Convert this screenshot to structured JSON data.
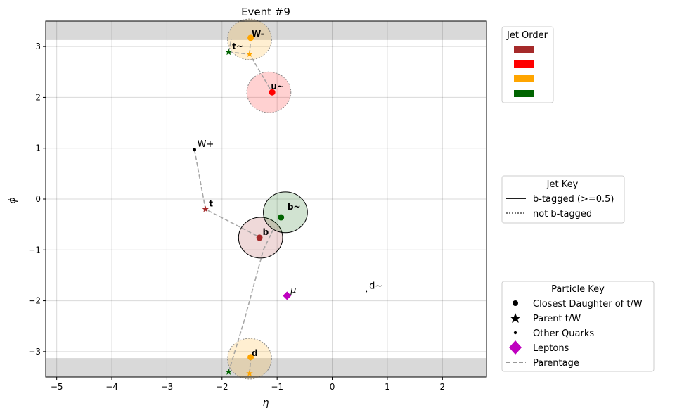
{
  "chart_data": {
    "type": "scatter",
    "title": "Event #9",
    "xlabel": "η",
    "ylabel": "ϕ",
    "xlim": [
      -5.2,
      2.8
    ],
    "ylim": [
      -3.5,
      3.5
    ],
    "xticks": [
      -5,
      -4,
      -3,
      -2,
      -1,
      0,
      1,
      2
    ],
    "yticks": [
      -3,
      -2,
      -1,
      0,
      1,
      2,
      3
    ],
    "xtick_labels": [
      "−5",
      "−4",
      "−3",
      "−2",
      "−1",
      "0",
      "1",
      "2"
    ],
    "ytick_labels": [
      "−3",
      "−2",
      "−1",
      "0",
      "1",
      "2",
      "3"
    ],
    "grid": true,
    "shaded_bands": [
      {
        "ymin": 3.14159,
        "ymax": 3.5
      },
      {
        "ymin": -3.5,
        "ymax": -3.14159
      }
    ],
    "jets": [
      {
        "eta": -1.3,
        "phi": -0.76,
        "radius": 0.4,
        "color": "#a52a2a",
        "btag": true,
        "label": "b"
      },
      {
        "eta": -0.85,
        "phi": -0.26,
        "radius": 0.4,
        "color": "#006400",
        "btag": true,
        "label": "b~"
      },
      {
        "eta": -1.15,
        "phi": 2.1,
        "radius": 0.4,
        "color": "#ff0000",
        "btag": false,
        "label": "u~"
      },
      {
        "eta": -1.5,
        "phi": 3.14,
        "radius": 0.4,
        "color": "#ffa500",
        "btag": false,
        "label": "W-"
      },
      {
        "eta": -1.5,
        "phi": -3.14,
        "radius": 0.4,
        "color": "#ffa500",
        "btag": false,
        "label": "d"
      }
    ],
    "daughters": [
      {
        "eta": -1.32,
        "phi": -0.76,
        "color": "#a52a2a"
      },
      {
        "eta": -0.93,
        "phi": -0.36,
        "color": "#006400"
      },
      {
        "eta": -1.09,
        "phi": 2.1,
        "color": "#ff0000"
      },
      {
        "eta": -1.48,
        "phi": 3.17,
        "color": "#ffa500"
      },
      {
        "eta": -1.48,
        "phi": -3.11,
        "color": "#ffa500"
      }
    ],
    "parents": [
      {
        "eta": -2.3,
        "phi": -0.2,
        "color": "#a52a2a",
        "label": "t"
      },
      {
        "eta": -1.88,
        "phi": 2.89,
        "color": "#006400",
        "label": "t~"
      },
      {
        "eta": -1.5,
        "phi": 2.85,
        "color": "#ffa500",
        "label": ""
      },
      {
        "eta": -1.88,
        "phi": -3.4,
        "color": "#006400",
        "label": ""
      },
      {
        "eta": -1.5,
        "phi": -3.43,
        "color": "#ffa500",
        "label": ""
      }
    ],
    "other_quarks": [
      {
        "eta": -2.5,
        "phi": 0.97,
        "label": "W+"
      },
      {
        "eta": 0.62,
        "phi": -1.82,
        "label": "d~"
      }
    ],
    "leptons": [
      {
        "eta": -0.82,
        "phi": -1.9,
        "label": "μ"
      }
    ],
    "parentage_lines": [
      [
        [
          -2.5,
          0.97
        ],
        [
          -2.3,
          -0.2
        ],
        [
          -1.3,
          -0.76
        ]
      ],
      [
        [
          -1.88,
          2.89
        ],
        [
          -1.5,
          2.85
        ],
        [
          -1.09,
          2.1
        ]
      ],
      [
        [
          -1.5,
          2.85
        ],
        [
          -1.48,
          3.17
        ]
      ],
      [
        [
          -1.88,
          2.89
        ],
        [
          -1.83,
          3.14
        ]
      ],
      [
        [
          -1.67,
          3.5
        ],
        [
          -1.55,
          3.5
        ]
      ],
      [
        [
          -1.88,
          -3.4
        ],
        [
          -1.6,
          -2.4
        ],
        [
          -1.25,
          -1.0
        ],
        [
          -1.05,
          -0.55
        ]
      ],
      [
        [
          -1.5,
          -3.43
        ],
        [
          -1.48,
          -3.11
        ]
      ]
    ],
    "legends": {
      "jet_order": {
        "title": "Jet Order",
        "colors": [
          "#a52a2a",
          "#ff0000",
          "#ffa500",
          "#006400"
        ]
      },
      "jet_key": {
        "title": "Jet Key",
        "items": [
          "b-tagged (>=0.5)",
          "not b-tagged"
        ]
      },
      "particle_key": {
        "title": "Particle Key",
        "items": [
          "Closest Daughter of t/W",
          "Parent t/W",
          "Other Quarks",
          "Leptons",
          "Parentage"
        ]
      }
    }
  }
}
